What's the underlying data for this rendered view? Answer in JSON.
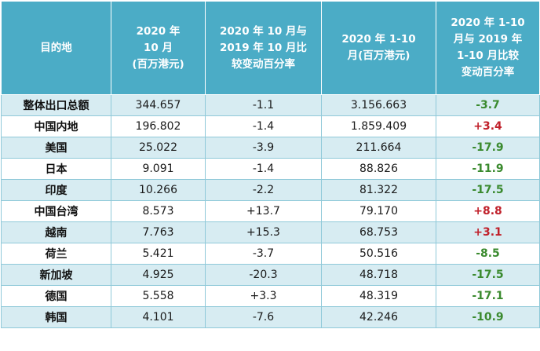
{
  "headers": {
    "destination": "目的地",
    "oct_value": [
      "2020 年",
      "10 月",
      "(百万港元)"
    ],
    "oct_change": [
      "2020 年 10 月与",
      "2019 年 10 月比",
      "较变动百分率"
    ],
    "ytd_value": [
      "2020 年 1-10",
      "月(百万港元)"
    ],
    "ytd_change": [
      "2020 年 1-10",
      "月与 2019 年",
      "1-10 月比较",
      "变动百分率"
    ]
  },
  "rows": [
    {
      "dest": "整体出口总额",
      "oct": "344.657",
      "oct_chg": "-1.1",
      "ytd": "3.156.663",
      "ytd_chg": "-3.7",
      "sign": "neg"
    },
    {
      "dest": "中国内地",
      "oct": "196.802",
      "oct_chg": "-1.4",
      "ytd": "1.859.409",
      "ytd_chg": "+3.4",
      "sign": "pos"
    },
    {
      "dest": "美国",
      "oct": "25.022",
      "oct_chg": "-3.9",
      "ytd": "211.664",
      "ytd_chg": "-17.9",
      "sign": "neg"
    },
    {
      "dest": "日本",
      "oct": "9.091",
      "oct_chg": "-1.4",
      "ytd": "88.826",
      "ytd_chg": "-11.9",
      "sign": "neg"
    },
    {
      "dest": "印度",
      "oct": "10.266",
      "oct_chg": "-2.2",
      "ytd": "81.322",
      "ytd_chg": "-17.5",
      "sign": "neg"
    },
    {
      "dest": "中国台湾",
      "oct": "8.573",
      "oct_chg": "+13.7",
      "ytd": "79.170",
      "ytd_chg": "+8.8",
      "sign": "pos"
    },
    {
      "dest": "越南",
      "oct": "7.763",
      "oct_chg": "+15.3",
      "ytd": "68.753",
      "ytd_chg": "+3.1",
      "sign": "pos"
    },
    {
      "dest": "荷兰",
      "oct": "5.421",
      "oct_chg": "-3.7",
      "ytd": "50.516",
      "ytd_chg": "-8.5",
      "sign": "neg"
    },
    {
      "dest": "新加坡",
      "oct": "4.925",
      "oct_chg": "-20.3",
      "ytd": "48.718",
      "ytd_chg": "-17.5",
      "sign": "neg"
    },
    {
      "dest": "德国",
      "oct": "5.558",
      "oct_chg": "+3.3",
      "ytd": "48.319",
      "ytd_chg": "-17.1",
      "sign": "neg"
    },
    {
      "dest": "韩国",
      "oct": "4.101",
      "oct_chg": "-7.6",
      "ytd": "42.246",
      "ytd_chg": "-10.9",
      "sign": "neg"
    }
  ],
  "colors": {
    "header_bg": "#4bacc6",
    "band_bg": "#d7ecf2",
    "negative_text": "#3a8a2e",
    "positive_text": "#c0202a"
  }
}
